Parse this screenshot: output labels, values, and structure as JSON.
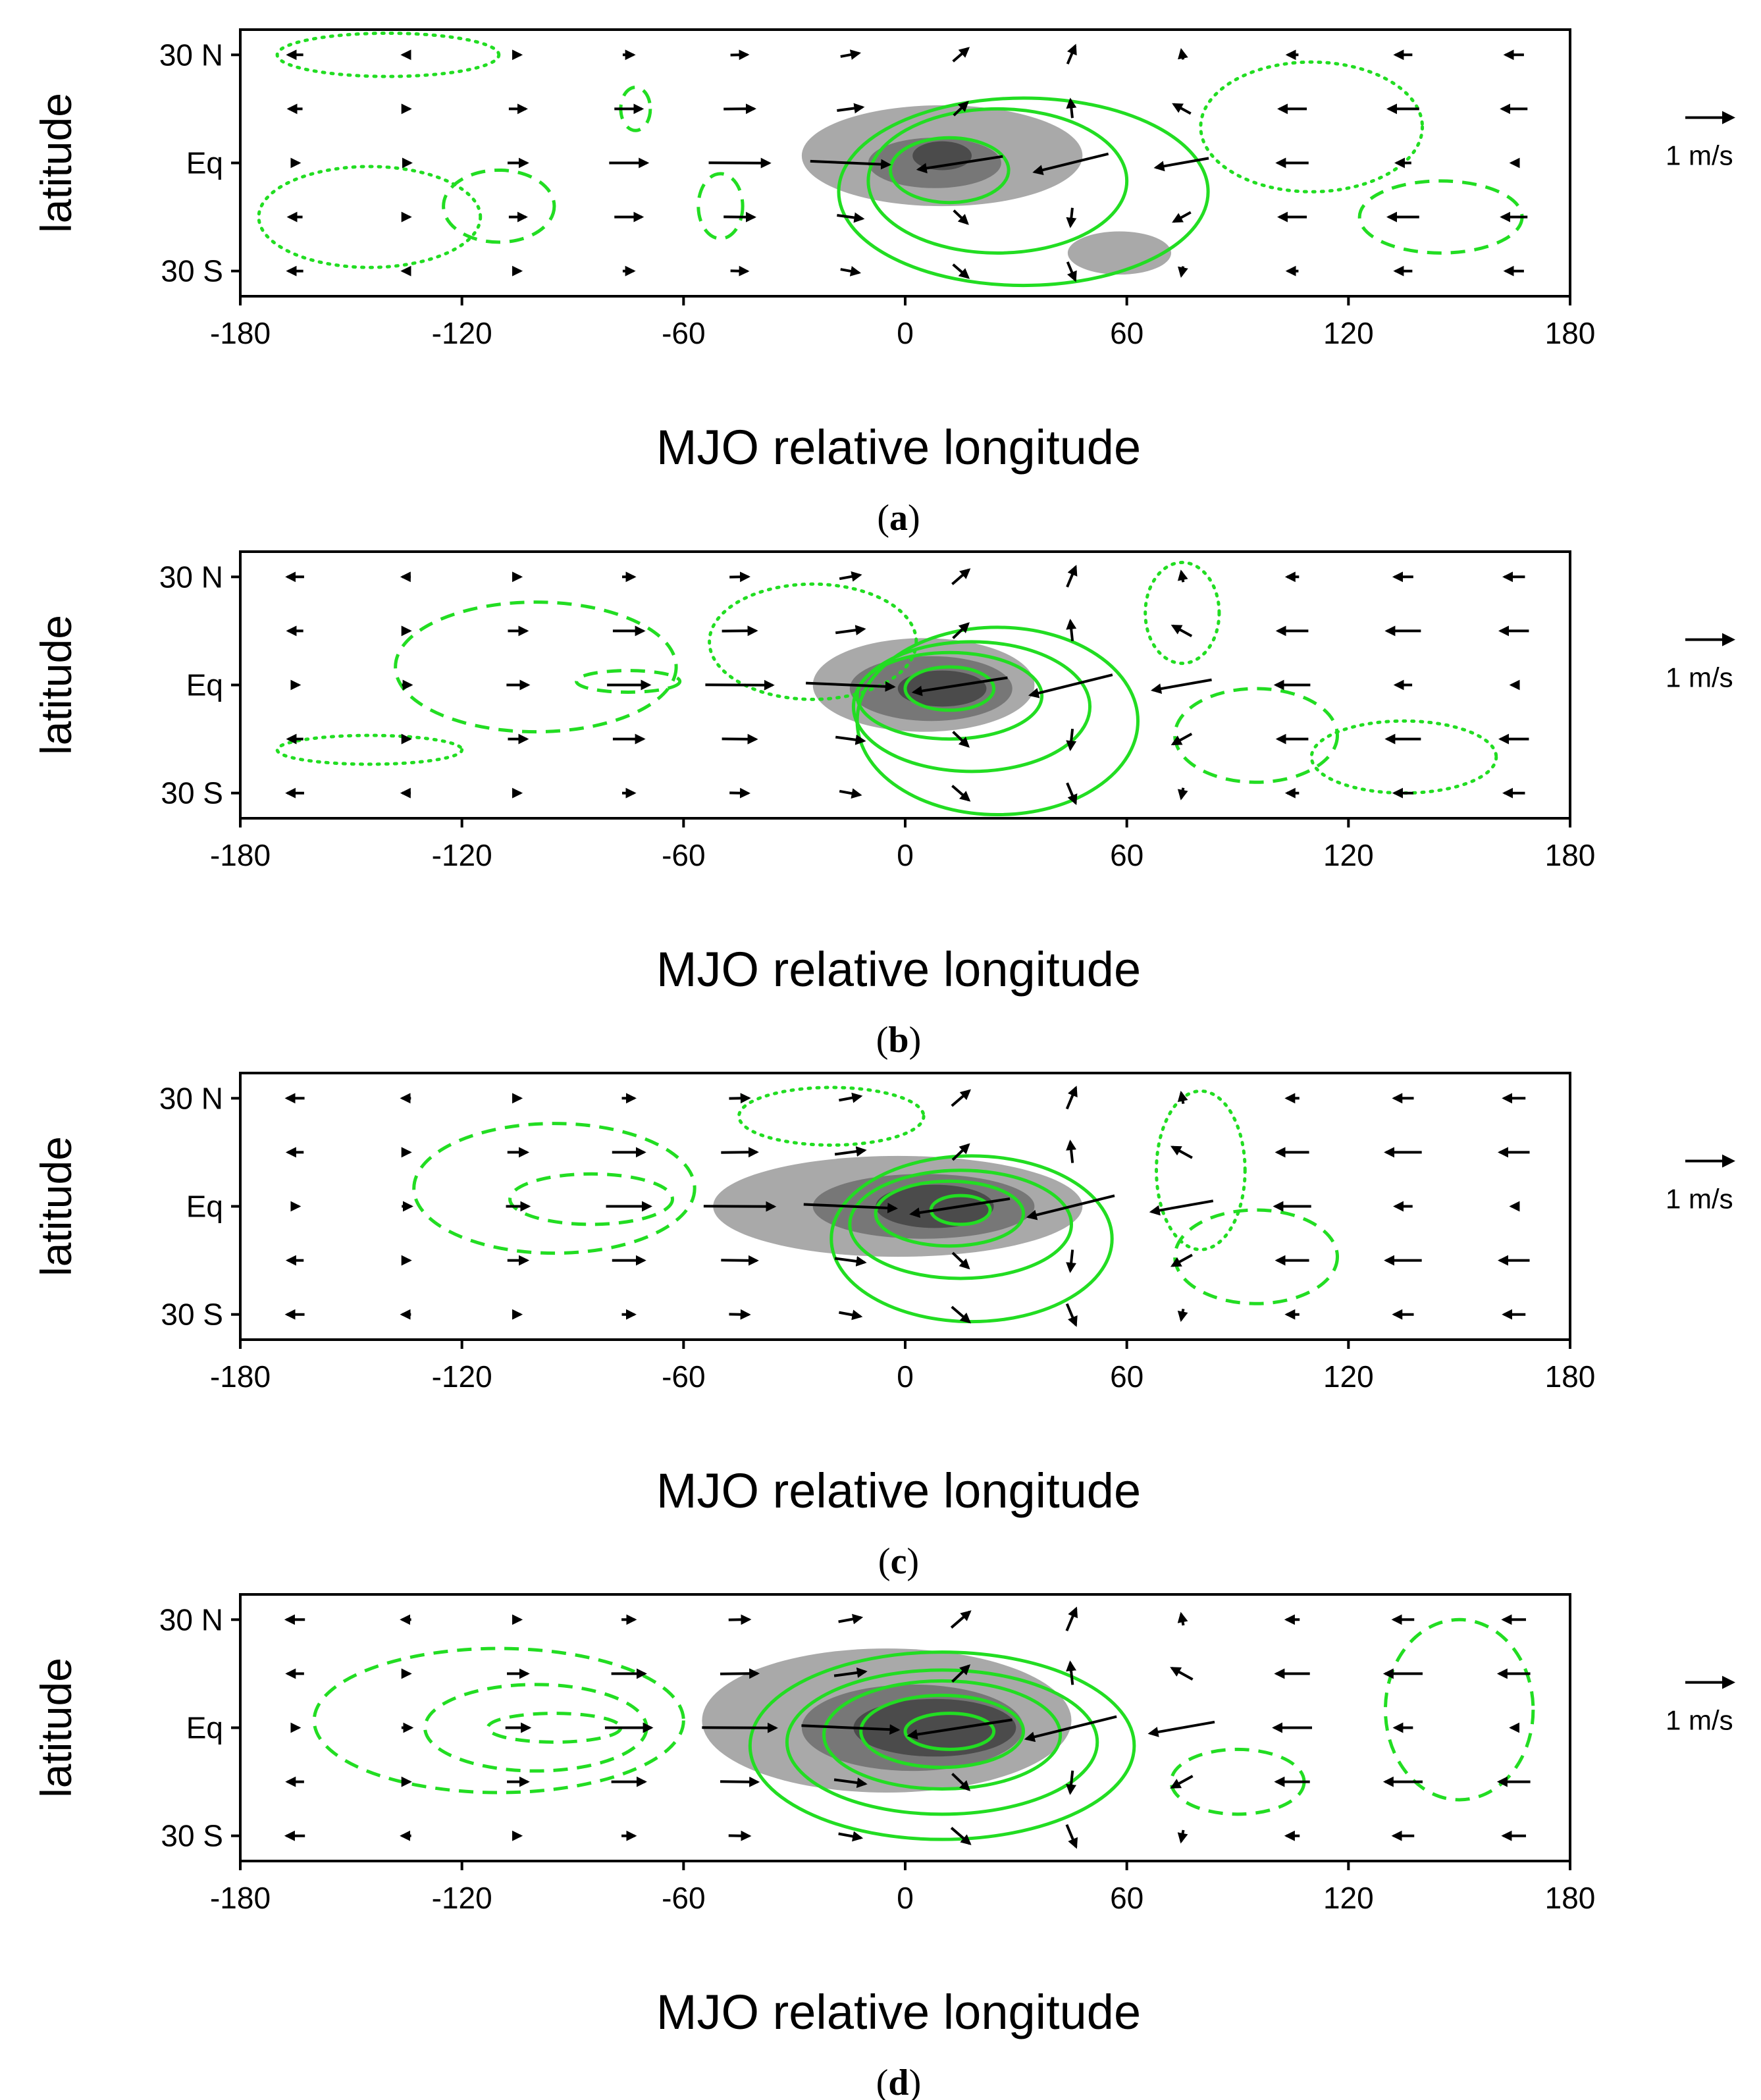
{
  "chart_data": [
    {
      "type": "contour",
      "caption_letter": "a",
      "xlabel": "MJO relative longitude",
      "ylabel": "latitude",
      "xticks": [
        "-180",
        "-120",
        "-60",
        "0",
        "60",
        "120",
        "180"
      ],
      "yticks": [
        "30 N",
        "Eq",
        "30 S"
      ],
      "xlim": [
        -180,
        180
      ],
      "ylim": [
        -37,
        37
      ],
      "reference_vector": "1 m/s",
      "strength": 0.9,
      "shading": [
        {
          "level": 1,
          "cx": 10,
          "cy": 2,
          "rx": 38,
          "ry": 14
        },
        {
          "level": 1,
          "cx": 58,
          "cy": -25,
          "rx": 14,
          "ry": 6
        },
        {
          "level": 2,
          "cx": 8,
          "cy": 0,
          "rx": 18,
          "ry": 7
        },
        {
          "level": 3,
          "cx": 10,
          "cy": 2,
          "rx": 8,
          "ry": 4
        }
      ],
      "positive_contours": [
        {
          "cx": 12,
          "cy": -2,
          "rx": 16,
          "ry": 9
        },
        {
          "cx": 25,
          "cy": -5,
          "rx": 35,
          "ry": 20
        },
        {
          "cx": 32,
          "cy": -8,
          "rx": 50,
          "ry": 26
        }
      ],
      "negative_contours": [
        {
          "cx": -110,
          "cy": -12,
          "rx": 15,
          "ry": 10
        },
        {
          "cx": -73,
          "cy": 15,
          "rx": 4,
          "ry": 6
        },
        {
          "cx": -50,
          "cy": -12,
          "rx": 6,
          "ry": 9
        },
        {
          "cx": 145,
          "cy": -15,
          "rx": 22,
          "ry": 10
        }
      ],
      "zero_contours": [
        {
          "cx": -145,
          "cy": -15,
          "rx": 30,
          "ry": 14
        },
        {
          "cx": -140,
          "cy": 30,
          "rx": 30,
          "ry": 6
        },
        {
          "cx": 110,
          "cy": 10,
          "rx": 30,
          "ry": 18
        }
      ]
    },
    {
      "type": "contour",
      "caption_letter": "b",
      "xlabel": "MJO relative longitude",
      "ylabel": "latitude",
      "xticks": [
        "-180",
        "-120",
        "-60",
        "0",
        "60",
        "120",
        "180"
      ],
      "yticks": [
        "30 N",
        "Eq",
        "30 S"
      ],
      "xlim": [
        -180,
        180
      ],
      "ylim": [
        -37,
        37
      ],
      "reference_vector": "1 m/s",
      "strength": 1.0,
      "shading": [
        {
          "level": 1,
          "cx": 5,
          "cy": 0,
          "rx": 30,
          "ry": 13
        },
        {
          "level": 2,
          "cx": 7,
          "cy": -1,
          "rx": 22,
          "ry": 9
        },
        {
          "level": 3,
          "cx": 10,
          "cy": -1,
          "rx": 12,
          "ry": 5
        }
      ],
      "positive_contours": [
        {
          "cx": 12,
          "cy": -1,
          "rx": 12,
          "ry": 6
        },
        {
          "cx": 12,
          "cy": -3,
          "rx": 25,
          "ry": 12
        },
        {
          "cx": 18,
          "cy": -6,
          "rx": 32,
          "ry": 18
        },
        {
          "cx": 25,
          "cy": -10,
          "rx": 38,
          "ry": 26
        }
      ],
      "negative_contours": [
        {
          "cx": -100,
          "cy": 5,
          "rx": 38,
          "ry": 18
        },
        {
          "cx": -75,
          "cy": 1,
          "rx": 14,
          "ry": 3
        },
        {
          "cx": 95,
          "cy": -14,
          "rx": 22,
          "ry": 13
        }
      ],
      "zero_contours": [
        {
          "cx": -25,
          "cy": 12,
          "rx": 28,
          "ry": 16
        },
        {
          "cx": -145,
          "cy": -18,
          "rx": 25,
          "ry": 4
        },
        {
          "cx": 75,
          "cy": 20,
          "rx": 10,
          "ry": 14
        },
        {
          "cx": 135,
          "cy": -20,
          "rx": 25,
          "ry": 10
        }
      ]
    },
    {
      "type": "contour",
      "caption_letter": "c",
      "xlabel": "MJO relative longitude",
      "ylabel": "latitude",
      "xticks": [
        "-180",
        "-120",
        "-60",
        "0",
        "60",
        "120",
        "180"
      ],
      "yticks": [
        "30 N",
        "Eq",
        "30 S"
      ],
      "xlim": [
        -180,
        180
      ],
      "ylim": [
        -37,
        37
      ],
      "reference_vector": "1 m/s",
      "strength": 1.05,
      "shading": [
        {
          "level": 1,
          "cx": -2,
          "cy": 0,
          "rx": 50,
          "ry": 14
        },
        {
          "level": 2,
          "cx": 5,
          "cy": 0,
          "rx": 30,
          "ry": 9
        },
        {
          "level": 3,
          "cx": 8,
          "cy": 0,
          "rx": 16,
          "ry": 6
        }
      ],
      "positive_contours": [
        {
          "cx": 15,
          "cy": -1,
          "rx": 8,
          "ry": 4
        },
        {
          "cx": 12,
          "cy": -2,
          "rx": 20,
          "ry": 9
        },
        {
          "cx": 15,
          "cy": -5,
          "rx": 30,
          "ry": 15
        },
        {
          "cx": 18,
          "cy": -9,
          "rx": 38,
          "ry": 23
        }
      ],
      "negative_contours": [
        {
          "cx": -95,
          "cy": 5,
          "rx": 38,
          "ry": 18
        },
        {
          "cx": -85,
          "cy": 2,
          "rx": 22,
          "ry": 7
        },
        {
          "cx": 95,
          "cy": -14,
          "rx": 22,
          "ry": 13
        }
      ],
      "zero_contours": [
        {
          "cx": -20,
          "cy": 25,
          "rx": 25,
          "ry": 8
        },
        {
          "cx": 80,
          "cy": 10,
          "rx": 12,
          "ry": 22
        }
      ]
    },
    {
      "type": "contour",
      "caption_letter": "d",
      "xlabel": "MJO relative longitude",
      "ylabel": "latitude",
      "xticks": [
        "-180",
        "-120",
        "-60",
        "0",
        "60",
        "120",
        "180"
      ],
      "yticks": [
        "30 N",
        "Eq",
        "30 S"
      ],
      "xlim": [
        -180,
        180
      ],
      "ylim": [
        -37,
        37
      ],
      "reference_vector": "1 m/s",
      "strength": 1.1,
      "shading": [
        {
          "level": 1,
          "cx": -5,
          "cy": 2,
          "rx": 50,
          "ry": 20
        },
        {
          "level": 2,
          "cx": 2,
          "cy": 0,
          "rx": 30,
          "ry": 12
        },
        {
          "level": 3,
          "cx": 8,
          "cy": 0,
          "rx": 22,
          "ry": 8
        }
      ],
      "positive_contours": [
        {
          "cx": 12,
          "cy": -1,
          "rx": 12,
          "ry": 5
        },
        {
          "cx": 10,
          "cy": -1,
          "rx": 22,
          "ry": 10
        },
        {
          "cx": 10,
          "cy": -2,
          "rx": 32,
          "ry": 15
        },
        {
          "cx": 10,
          "cy": -4,
          "rx": 42,
          "ry": 20
        },
        {
          "cx": 10,
          "cy": -5,
          "rx": 52,
          "ry": 26
        }
      ],
      "negative_contours": [
        {
          "cx": -110,
          "cy": 2,
          "rx": 50,
          "ry": 20
        },
        {
          "cx": -100,
          "cy": 0,
          "rx": 30,
          "ry": 12
        },
        {
          "cx": -95,
          "cy": 0,
          "rx": 18,
          "ry": 4
        },
        {
          "cx": 90,
          "cy": -15,
          "rx": 18,
          "ry": 9
        },
        {
          "cx": 150,
          "cy": 5,
          "rx": 20,
          "ry": 25
        }
      ],
      "zero_contours": []
    }
  ]
}
